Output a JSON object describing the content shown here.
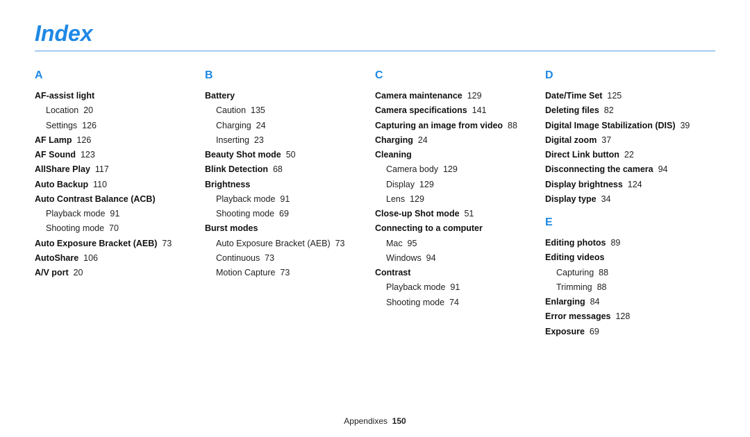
{
  "title": "Index",
  "footer_label": "Appendixes",
  "footer_page": "150",
  "cols": [
    {
      "letter": "A",
      "items": [
        {
          "t": "AF-assist light",
          "subs": [
            {
              "t": "Location",
              "p": "20"
            },
            {
              "t": "Settings",
              "p": "126"
            }
          ]
        },
        {
          "t": "AF Lamp",
          "p": "126"
        },
        {
          "t": "AF Sound",
          "p": "123"
        },
        {
          "t": "AllShare Play",
          "p": "117"
        },
        {
          "t": "Auto Backup",
          "p": "110"
        },
        {
          "t": "Auto Contrast Balance (ACB)",
          "subs": [
            {
              "t": "Playback mode",
              "p": "91"
            },
            {
              "t": "Shooting mode",
              "p": "70"
            }
          ]
        },
        {
          "t": "Auto Exposure Bracket (AEB)",
          "p": "73"
        },
        {
          "t": "AutoShare",
          "p": "106"
        },
        {
          "t": "A/V port",
          "p": "20"
        }
      ]
    },
    {
      "letter": "B",
      "items": [
        {
          "t": "Battery",
          "subs": [
            {
              "t": "Caution",
              "p": "135"
            },
            {
              "t": "Charging",
              "p": "24"
            },
            {
              "t": "Inserting",
              "p": "23"
            }
          ]
        },
        {
          "t": "Beauty Shot mode",
          "p": "50"
        },
        {
          "t": "Blink Detection",
          "p": "68"
        },
        {
          "t": "Brightness",
          "subs": [
            {
              "t": "Playback mode",
              "p": "91"
            },
            {
              "t": "Shooting mode",
              "p": "69"
            }
          ]
        },
        {
          "t": "Burst modes",
          "subs": [
            {
              "t": "Auto Exposure Bracket (AEB)",
              "p": "73"
            },
            {
              "t": "Continuous",
              "p": "73"
            },
            {
              "t": "Motion Capture",
              "p": "73"
            }
          ]
        }
      ]
    },
    {
      "letter": "C",
      "items": [
        {
          "t": "Camera maintenance",
          "p": "129"
        },
        {
          "t": "Camera specifications",
          "p": "141"
        },
        {
          "t": "Capturing an image from video",
          "p": "88"
        },
        {
          "t": "Charging",
          "p": "24"
        },
        {
          "t": "Cleaning",
          "subs": [
            {
              "t": "Camera body",
              "p": "129"
            },
            {
              "t": "Display",
              "p": "129"
            },
            {
              "t": "Lens",
              "p": "129"
            }
          ]
        },
        {
          "t": "Close-up Shot mode",
          "p": "51"
        },
        {
          "t": "Connecting to a computer",
          "subs": [
            {
              "t": "Mac",
              "p": "95"
            },
            {
              "t": "Windows",
              "p": "94"
            }
          ]
        },
        {
          "t": "Contrast",
          "subs": [
            {
              "t": "Playback mode",
              "p": "91"
            },
            {
              "t": "Shooting mode",
              "p": "74"
            }
          ]
        }
      ]
    },
    {
      "letters": [
        "D",
        "E"
      ],
      "groups": [
        {
          "letter": "D",
          "items": [
            {
              "t": "Date/Time Set",
              "p": "125"
            },
            {
              "t": "Deleting files",
              "p": "82"
            },
            {
              "t": "Digital Image Stabilization (DIS)",
              "p": "39"
            },
            {
              "t": "Digital zoom",
              "p": "37"
            },
            {
              "t": "Direct Link button",
              "p": "22"
            },
            {
              "t": "Disconnecting the camera",
              "p": "94"
            },
            {
              "t": "Display brightness",
              "p": "124"
            },
            {
              "t": "Display type",
              "p": "34"
            }
          ]
        },
        {
          "letter": "E",
          "items": [
            {
              "t": "Editing photos",
              "p": "89"
            },
            {
              "t": "Editing videos",
              "subs": [
                {
                  "t": "Capturing",
                  "p": "88"
                },
                {
                  "t": "Trimming",
                  "p": "88"
                }
              ]
            },
            {
              "t": "Enlarging",
              "p": "84"
            },
            {
              "t": "Error messages",
              "p": "128"
            },
            {
              "t": "Exposure",
              "p": "69"
            }
          ]
        }
      ]
    }
  ]
}
